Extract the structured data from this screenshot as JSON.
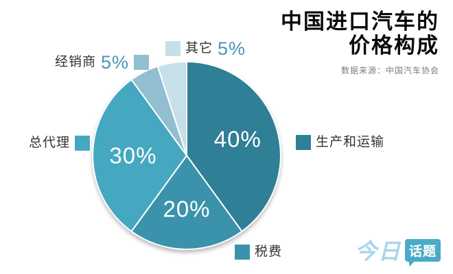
{
  "header": {
    "title_line1": "中国进口汽车的",
    "title_line2": "价格构成",
    "source": "数据来源：中国汽车协会"
  },
  "chart_data": {
    "type": "pie",
    "title": "中国进口汽车的价格构成",
    "source": "数据来源：中国汽车协会",
    "direction": "clockwise",
    "start_angle_deg": 0,
    "slices": [
      {
        "label": "生产和运输",
        "value": 40,
        "pct_label": "40%",
        "color": "#2f7f96",
        "label_inside": true
      },
      {
        "label": "税费",
        "value": 20,
        "pct_label": "20%",
        "color": "#3a93aa",
        "label_inside": true
      },
      {
        "label": "总代理",
        "value": 30,
        "pct_label": "30%",
        "color": "#46a8c0",
        "label_inside": true
      },
      {
        "label": "经销商",
        "value": 5,
        "pct_label": "5%",
        "color": "#92bfd0",
        "label_inside": false
      },
      {
        "label": "其它",
        "value": 5,
        "pct_label": "5%",
        "color": "#c7dfe8",
        "label_inside": false
      }
    ]
  },
  "logo": {
    "part1": "今日",
    "part2": "话题"
  },
  "colors": {
    "accent_pct_teal": "#4a96b5",
    "title_black": "#0a0a0a",
    "source_gray": "#7c7c7c",
    "logo_blue": "#a9d6ea",
    "logo_badge_teal": "#4baac7",
    "slice_divider": "#ffffff"
  }
}
